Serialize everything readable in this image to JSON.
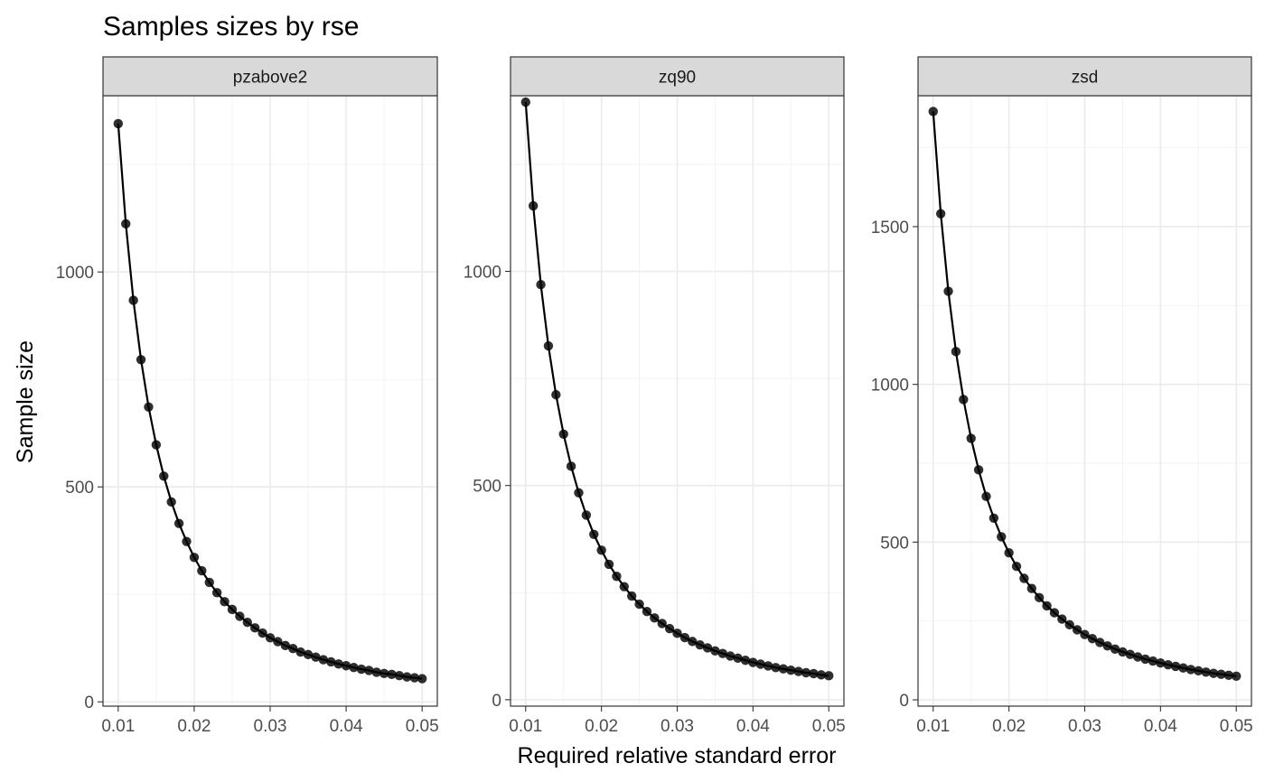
{
  "chart_data": {
    "type": "scatter",
    "title": "Samples sizes by rse",
    "xlabel": "Required relative standard error",
    "ylabel": "Sample size",
    "x": [
      0.01,
      0.011,
      0.012,
      0.013,
      0.014,
      0.015,
      0.016,
      0.017,
      0.018,
      0.019,
      0.02,
      0.021,
      0.022,
      0.023,
      0.024,
      0.025,
      0.026,
      0.027,
      0.028,
      0.029,
      0.03,
      0.031,
      0.032,
      0.033,
      0.034,
      0.035,
      0.036,
      0.037,
      0.038,
      0.039,
      0.04,
      0.041,
      0.042,
      0.043,
      0.044,
      0.045,
      0.046,
      0.047,
      0.048,
      0.049,
      0.05
    ],
    "xlim": [
      0.008,
      0.052
    ],
    "xticks": [
      0.01,
      0.02,
      0.03,
      0.04,
      0.05
    ],
    "xtick_labels": [
      "0.01",
      "0.02",
      "0.03",
      "0.04",
      "0.05"
    ],
    "grid": true,
    "style": "points connected by line",
    "panels": [
      {
        "name": "pzabove2",
        "ylim": [
          -10,
          1410
        ],
        "yticks": [
          0,
          500,
          1000
        ],
        "ytick_labels": [
          "0",
          "500",
          "1000"
        ],
        "values": [
          1345,
          1112,
          934,
          796,
          686,
          598,
          525,
          465,
          415,
          373,
          336,
          305,
          278,
          254,
          233,
          215,
          199,
          185,
          172,
          160,
          149,
          140,
          131,
          124,
          116,
          110,
          104,
          98,
          93,
          88,
          84,
          80,
          76,
          73,
          69,
          66,
          64,
          61,
          58,
          56,
          54
        ]
      },
      {
        "name": "zq90",
        "ylim": [
          -15,
          1410
        ],
        "yticks": [
          0,
          500,
          1000
        ],
        "ytick_labels": [
          "0",
          "500",
          "1000"
        ],
        "values": [
          1395,
          1153,
          969,
          826,
          712,
          620,
          545,
          483,
          431,
          386,
          349,
          316,
          288,
          264,
          242,
          223,
          206,
          191,
          178,
          166,
          155,
          145,
          136,
          128,
          121,
          114,
          108,
          102,
          97,
          92,
          87,
          83,
          79,
          75,
          72,
          69,
          66,
          63,
          61,
          58,
          56
        ]
      },
      {
        "name": "zsd",
        "ylim": [
          -20,
          1915
        ],
        "yticks": [
          0,
          500,
          1000,
          1500
        ],
        "ytick_labels": [
          "0",
          "500",
          "1000",
          "1500"
        ],
        "values": [
          1865,
          1541,
          1295,
          1104,
          952,
          829,
          729,
          645,
          576,
          517,
          466,
          423,
          385,
          353,
          324,
          298,
          276,
          256,
          238,
          222,
          207,
          194,
          182,
          171,
          161,
          152,
          144,
          136,
          129,
          123,
          117,
          111,
          106,
          101,
          96,
          92,
          88,
          84,
          81,
          78,
          75
        ]
      }
    ]
  }
}
